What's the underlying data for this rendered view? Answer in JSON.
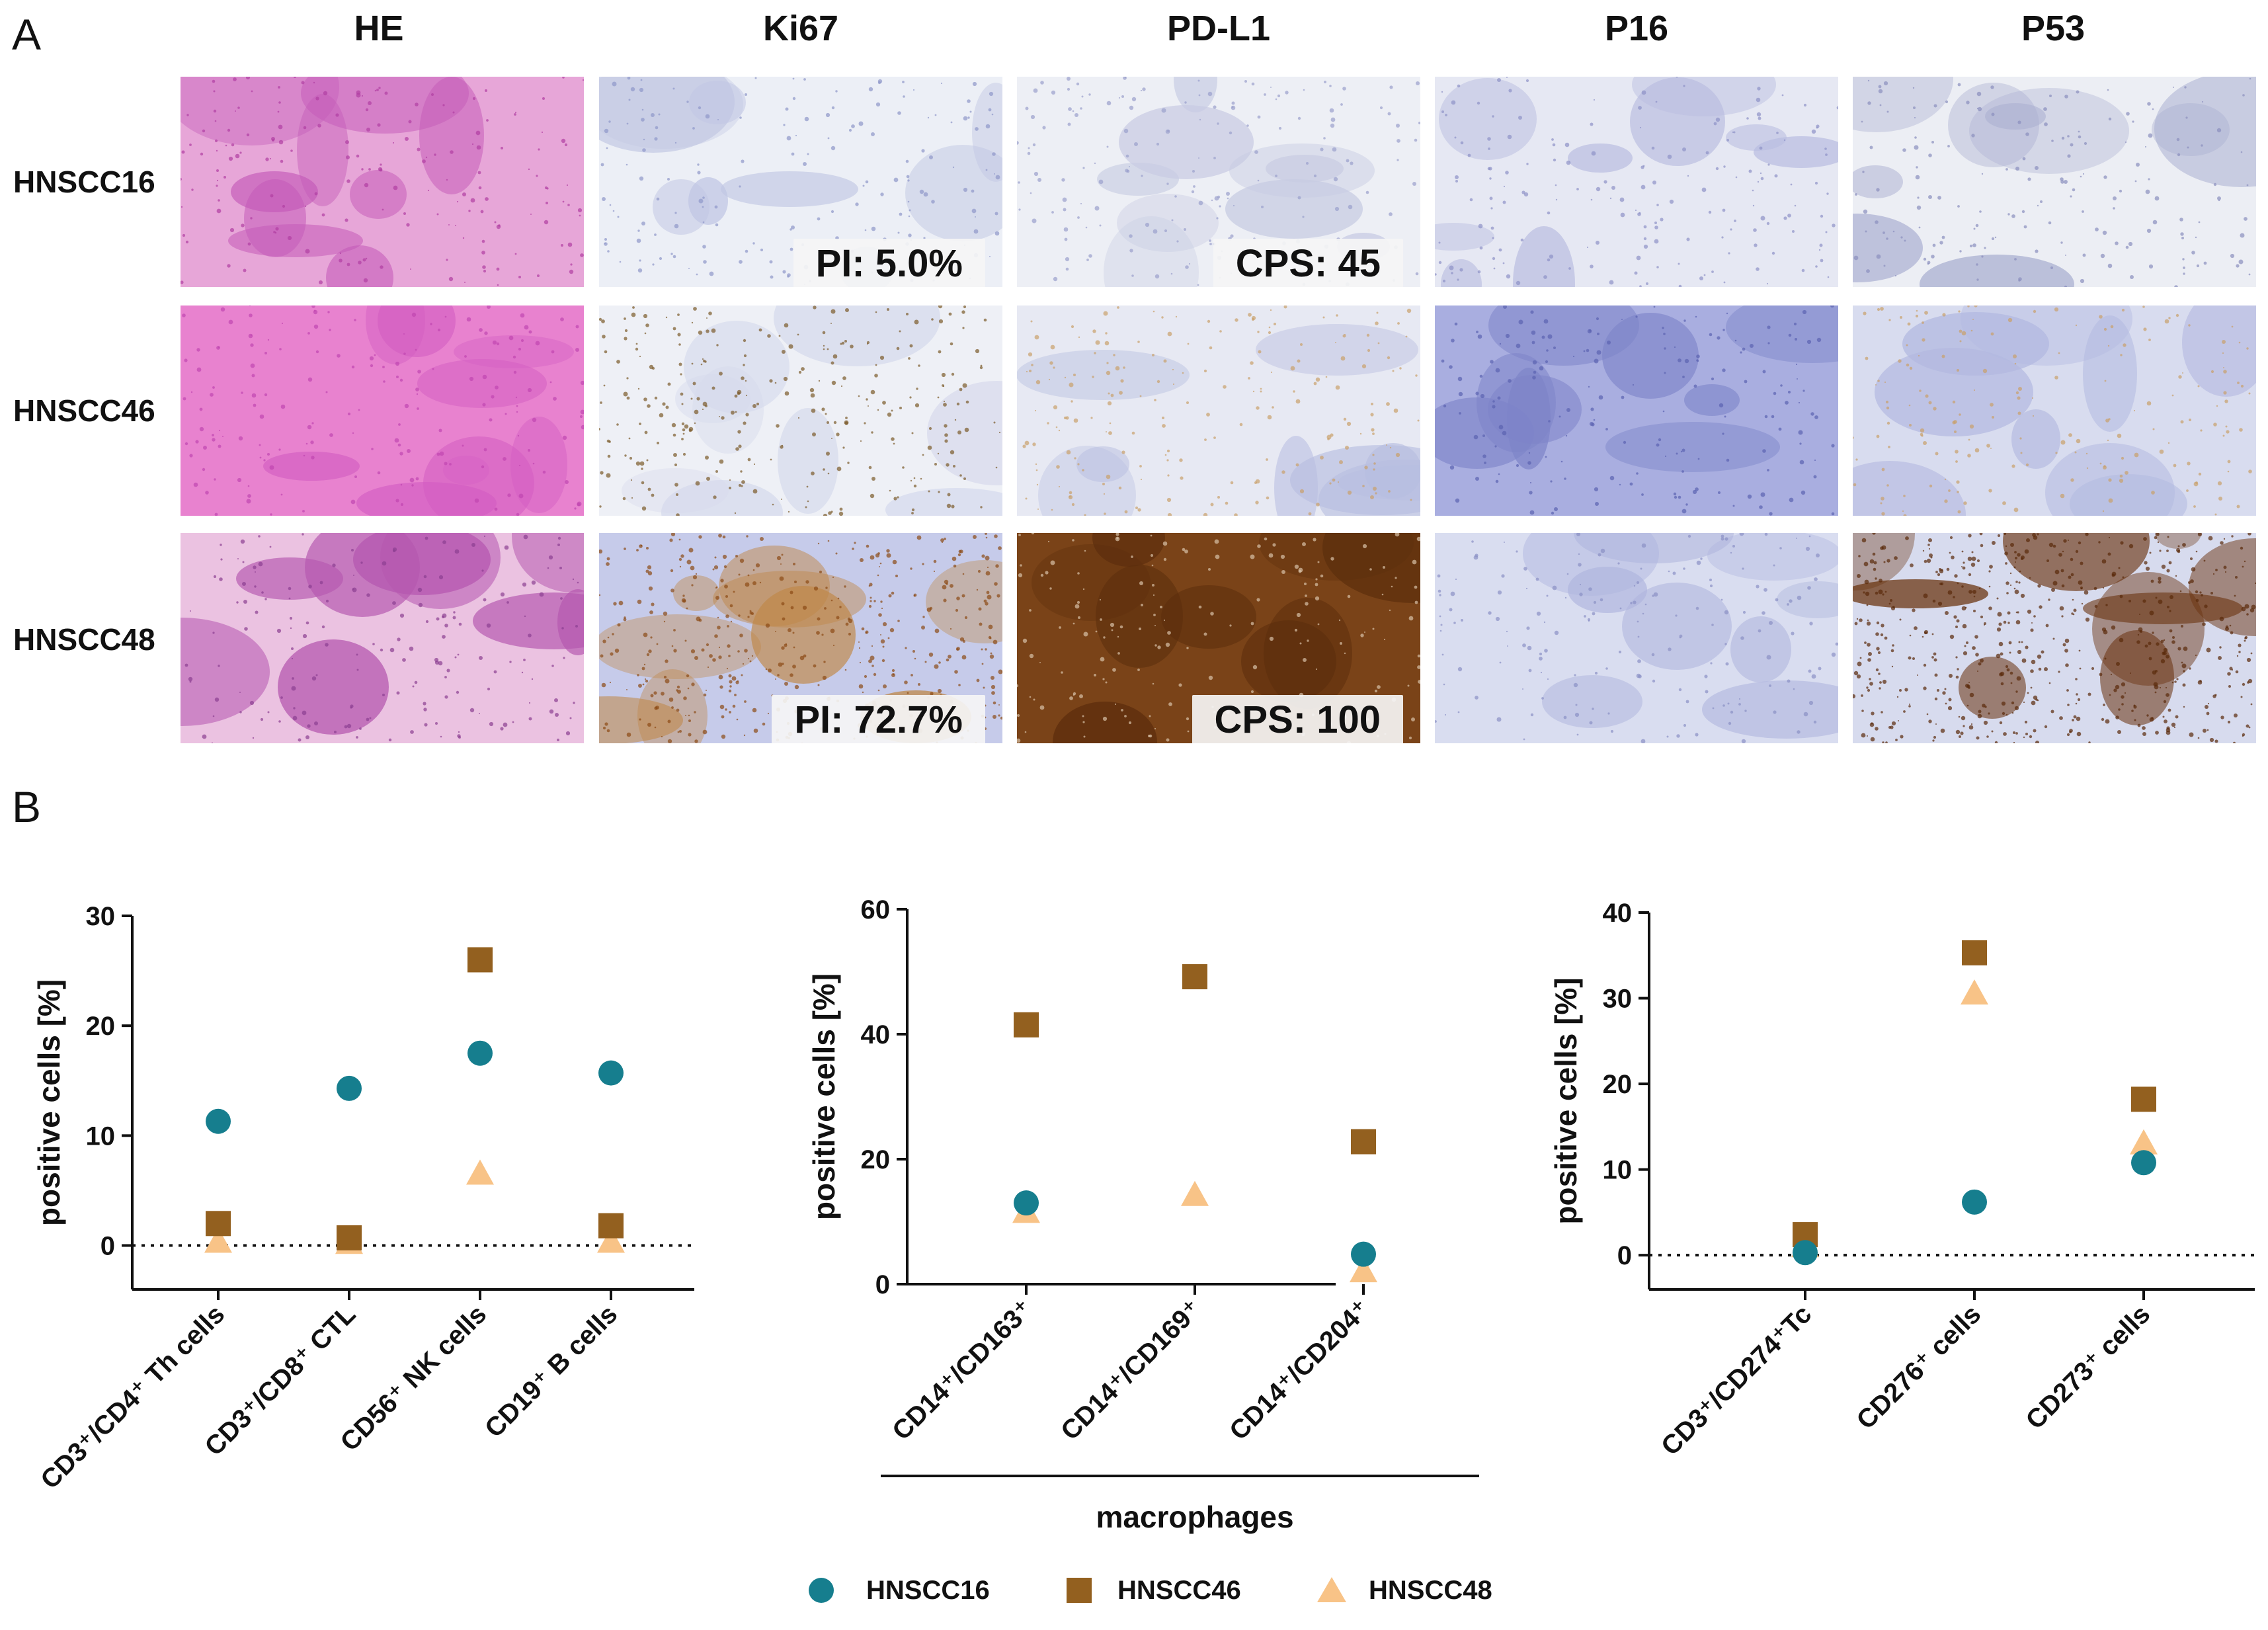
{
  "panel_a": {
    "letter": "A",
    "columns": [
      "HE",
      "Ki67",
      "PD-L1",
      "P16",
      "P53"
    ],
    "rows": [
      "HNSCC16",
      "HNSCC46",
      "HNSCC48"
    ],
    "labels": [
      {
        "row": 0,
        "col": 1,
        "text": "PI: 5.0%"
      },
      {
        "row": 0,
        "col": 2,
        "text": "CPS: 45"
      },
      {
        "row": 2,
        "col": 1,
        "text": "PI: 72.7%"
      },
      {
        "row": 2,
        "col": 2,
        "text": "CPS: 100"
      }
    ]
  },
  "panel_b": {
    "letter": "B",
    "colors": {
      "HNSCC16": "#167e8e",
      "HNSCC46": "#93601f",
      "HNSCC48": "#f8c387"
    },
    "legend": [
      {
        "name": "HNSCC16",
        "marker": "circle",
        "color": "#167e8e"
      },
      {
        "name": "HNSCC46",
        "marker": "square",
        "color": "#93601f"
      },
      {
        "name": "HNSCC48",
        "marker": "triangle",
        "color": "#f8c387"
      }
    ]
  },
  "chart_data": [
    {
      "type": "scatter",
      "ylabel": "positive cells [%]",
      "ylim": [
        -4,
        30
      ],
      "yticks": [
        0,
        10,
        20,
        30
      ],
      "zero_line": true,
      "categories": [
        "CD3⁺/CD4⁺ Th cells",
        "CD3⁺/CD8⁺ CTL",
        "CD56⁺ NK cells",
        "CD19⁺ B cells"
      ],
      "series": [
        {
          "name": "HNSCC16",
          "values": [
            11.3,
            14.3,
            17.5,
            15.7
          ]
        },
        {
          "name": "HNSCC46",
          "values": [
            2.0,
            0.7,
            26.0,
            1.8
          ]
        },
        {
          "name": "HNSCC48",
          "values": [
            0.3,
            0.2,
            6.5,
            0.3
          ]
        }
      ]
    },
    {
      "type": "scatter",
      "ylabel": "positive cells [%]",
      "ylim": [
        0,
        60
      ],
      "yticks": [
        0,
        20,
        40,
        60
      ],
      "zero_line": false,
      "categories": [
        "CD14⁺/CD163⁺",
        "CD14⁺/CD169⁺",
        "CD14⁺/CD204⁺"
      ],
      "group_label": "macrophages",
      "series": [
        {
          "name": "HNSCC16",
          "values": [
            13.0,
            null,
            4.8
          ]
        },
        {
          "name": "HNSCC46",
          "values": [
            41.5,
            49.2,
            22.8
          ]
        },
        {
          "name": "HNSCC48",
          "values": [
            11.5,
            14.2,
            2.0
          ]
        }
      ]
    },
    {
      "type": "scatter",
      "ylabel": "positive cells [%]",
      "ylim": [
        -4,
        40
      ],
      "yticks": [
        0,
        10,
        20,
        30,
        40
      ],
      "zero_line": true,
      "categories": [
        "CD3⁺/CD274⁺Tc",
        "CD276⁺ cells",
        "CD273⁺ cells"
      ],
      "series": [
        {
          "name": "HNSCC16",
          "values": [
            0.3,
            6.2,
            10.8
          ]
        },
        {
          "name": "HNSCC46",
          "values": [
            2.4,
            35.3,
            18.2
          ]
        },
        {
          "name": "HNSCC48",
          "values": [
            1.0,
            30.5,
            13.0
          ]
        }
      ]
    }
  ]
}
